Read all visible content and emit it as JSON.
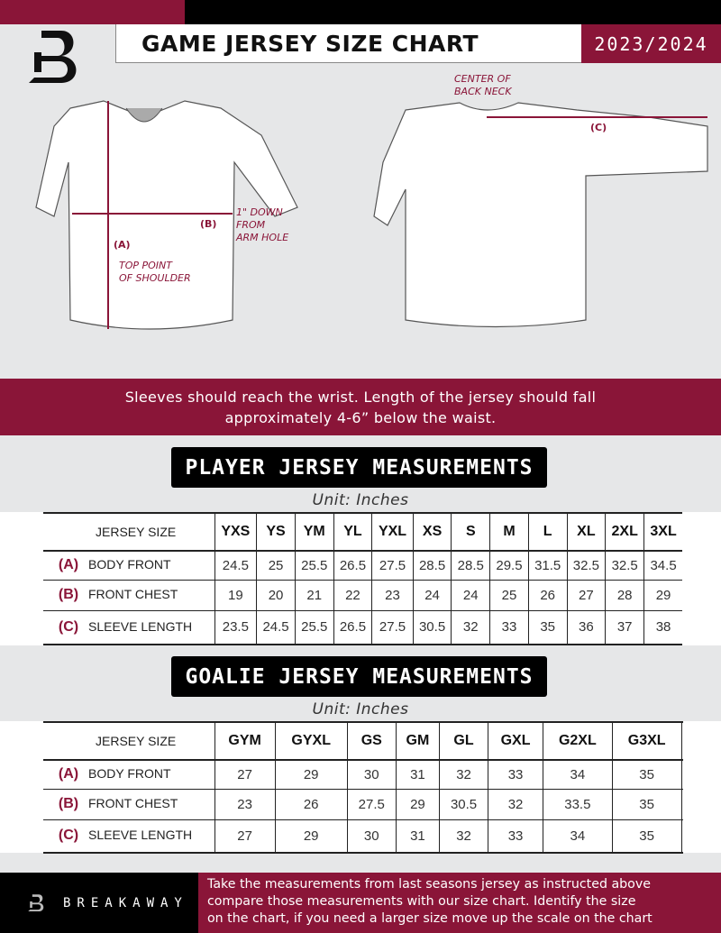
{
  "header": {
    "title": "GAME JERSEY SIZE CHART",
    "season": "2023/2024",
    "logo": "B"
  },
  "diagram": {
    "center_back_neck": [
      "CENTER OF",
      "BACK NECK"
    ],
    "label_a": "(A)",
    "label_b": "(B)",
    "label_c": "(C)",
    "down_note": [
      "1\" DOWN",
      "FROM",
      "ARM HOLE"
    ],
    "shoulder_note": [
      "TOP POINT",
      "OF SHOULDER"
    ]
  },
  "band": {
    "lines": [
      "Sleeves should reach the wrist. Length of the jersey should fall",
      "approximately 4-6” below the waist."
    ]
  },
  "player": {
    "title": "PLAYER JERSEY MEASUREMENTS",
    "unit": "Unit: Inches",
    "size_label": "JERSEY SIZE",
    "sizes": [
      "YXS",
      "YS",
      "YM",
      "YL",
      "YXL",
      "XS",
      "S",
      "M",
      "L",
      "XL",
      "2XL",
      "3XL"
    ],
    "rows": [
      {
        "letter": "(A)",
        "label": "BODY FRONT",
        "values": [
          "24.5",
          "25",
          "25.5",
          "26.5",
          "27.5",
          "28.5",
          "28.5",
          "29.5",
          "31.5",
          "32.5",
          "32.5",
          "34.5"
        ]
      },
      {
        "letter": "(B)",
        "label": "FRONT CHEST",
        "values": [
          "19",
          "20",
          "21",
          "22",
          "23",
          "24",
          "24",
          "25",
          "26",
          "27",
          "28",
          "29"
        ]
      },
      {
        "letter": "(C)",
        "label": "SLEEVE LENGTH",
        "values": [
          "23.5",
          "24.5",
          "25.5",
          "26.5",
          "27.5",
          "30.5",
          "32",
          "33",
          "35",
          "36",
          "37",
          "38"
        ]
      }
    ]
  },
  "goalie": {
    "title": "GOALIE JERSEY MEASUREMENTS",
    "unit": "Unit: Inches",
    "size_label": "JERSEY SIZE",
    "sizes": [
      "GYM",
      "GYXL",
      "GS",
      "GM",
      "GL",
      "GXL",
      "G2XL",
      "G3XL",
      ""
    ],
    "rows": [
      {
        "letter": "(A)",
        "label": "BODY FRONT",
        "values": [
          "27",
          "29",
          "30",
          "31",
          "32",
          "33",
          "34",
          "35",
          ""
        ]
      },
      {
        "letter": "(B)",
        "label": "FRONT CHEST",
        "values": [
          "23",
          "26",
          "27.5",
          "29",
          "30.5",
          "32",
          "33.5",
          "35",
          ""
        ]
      },
      {
        "letter": "(C)",
        "label": "SLEEVE LENGTH",
        "values": [
          "27",
          "29",
          "30",
          "31",
          "32",
          "33",
          "34",
          "35",
          ""
        ]
      }
    ]
  },
  "footer": {
    "brand": "BREAKAWAY",
    "lines": [
      "Take the measurements from last seasons jersey as instructed above",
      "compare those measurements  with our size chart. Identify the size",
      "on the chart, if you need a larger size move up the scale on the chart"
    ]
  },
  "colors": {
    "accent": "#8a1538",
    "background": "#e6e7e8"
  }
}
